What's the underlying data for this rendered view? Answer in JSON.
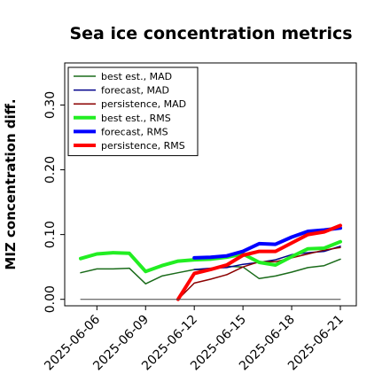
{
  "chart_data": {
    "type": "line",
    "title": "Sea ice concentration metrics",
    "xlabel": "",
    "ylabel": "MIZ concentration diff.",
    "ylim": [
      -0.01,
      0.365
    ],
    "yticks": [
      "0.00",
      "0.10",
      "0.20",
      "0.30"
    ],
    "ytick_values": [
      0.0,
      0.1,
      0.2,
      0.3
    ],
    "x": [
      "2025-06-05",
      "2025-06-06",
      "2025-06-07",
      "2025-06-08",
      "2025-06-09",
      "2025-06-10",
      "2025-06-11",
      "2025-06-12",
      "2025-06-13",
      "2025-06-14",
      "2025-06-15",
      "2025-06-16",
      "2025-06-17",
      "2025-06-18",
      "2025-06-19",
      "2025-06-20",
      "2025-06-21"
    ],
    "xticks": [
      "2025-06-06",
      "2025-06-09",
      "2025-06-12",
      "2025-06-15",
      "2025-06-18",
      "2025-06-21"
    ],
    "highlight_tick": "2025-06-12",
    "highlight_color": "#2e8b2e",
    "grid": false,
    "legend_position": "top-left",
    "series": [
      {
        "name": "best est., MAD",
        "color": "#1a6b1a",
        "width": 1.5,
        "values": [
          0.041,
          0.047,
          0.047,
          0.048,
          0.024,
          0.036,
          0.041,
          0.046,
          0.046,
          0.051,
          0.05,
          0.032,
          0.036,
          0.042,
          0.049,
          0.052,
          0.062
        ]
      },
      {
        "name": "forecast,  MAD",
        "color": "#00008b",
        "width": 1.5,
        "values": [
          null,
          null,
          null,
          null,
          null,
          null,
          null,
          0.046,
          0.048,
          0.049,
          0.054,
          0.057,
          0.061,
          0.069,
          0.072,
          0.074,
          0.082
        ]
      },
      {
        "name": "persistence, MAD",
        "color": "#8b0000",
        "width": 1.5,
        "values": [
          null,
          null,
          null,
          null,
          null,
          null,
          0.0,
          0.025,
          0.031,
          0.038,
          0.05,
          0.058,
          0.058,
          0.064,
          0.07,
          0.076,
          0.08
        ]
      },
      {
        "name": "best est., RMS",
        "color": "#22ee22",
        "width": 4,
        "values": [
          0.063,
          0.07,
          0.072,
          0.071,
          0.043,
          0.052,
          0.059,
          0.061,
          0.062,
          0.065,
          0.07,
          0.057,
          0.053,
          0.066,
          0.078,
          0.079,
          0.089
        ]
      },
      {
        "name": "forecast,  RMS",
        "color": "#0000ff",
        "width": 4,
        "values": [
          null,
          null,
          null,
          null,
          null,
          null,
          null,
          0.064,
          0.065,
          0.067,
          0.074,
          0.086,
          0.085,
          0.096,
          0.105,
          0.107,
          0.11
        ]
      },
      {
        "name": "persistence, RMS",
        "color": "#ff0000",
        "width": 4,
        "values": [
          null,
          null,
          null,
          null,
          null,
          null,
          0.0,
          0.04,
          0.046,
          0.053,
          0.068,
          0.074,
          0.074,
          0.087,
          0.1,
          0.104,
          0.114
        ]
      },
      {
        "name": "",
        "color": "#444444",
        "width": 1,
        "values": [
          0,
          0,
          0,
          0,
          0,
          0,
          0,
          0,
          0,
          0,
          0,
          0,
          0,
          0,
          0,
          0,
          0
        ]
      }
    ]
  }
}
